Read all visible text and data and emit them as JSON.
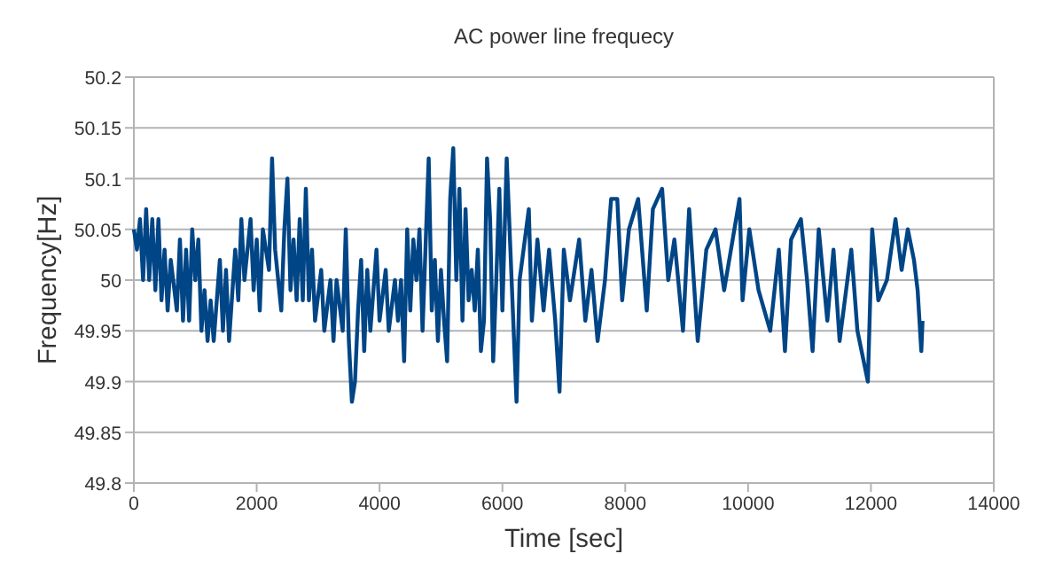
{
  "chart_data": {
    "type": "line",
    "title": "AC power line frequecy",
    "xlabel": "Time [sec]",
    "ylabel": "Frequency[Hz]",
    "xlim": [
      0,
      14000
    ],
    "ylim": [
      49.8,
      50.2
    ],
    "xticks": [
      0,
      2000,
      4000,
      6000,
      8000,
      10000,
      12000,
      14000
    ],
    "yticks": [
      49.8,
      49.85,
      49.9,
      49.95,
      50,
      50.05,
      50.1,
      50.15,
      50.2
    ],
    "grid": "y",
    "marker": "none",
    "line_style": "solid",
    "series": [
      {
        "color": "#004586",
        "x": [
          0,
          50,
          100,
          150,
          200,
          250,
          300,
          350,
          400,
          450,
          500,
          550,
          600,
          700,
          750,
          800,
          850,
          900,
          950,
          1000,
          1050,
          1100,
          1150,
          1200,
          1250,
          1300,
          1400,
          1450,
          1500,
          1550,
          1650,
          1700,
          1750,
          1800,
          1900,
          1950,
          2000,
          2050,
          2100,
          2200,
          2250,
          2300,
          2350,
          2400,
          2450,
          2500,
          2550,
          2600,
          2650,
          2700,
          2750,
          2800,
          2850,
          2900,
          2950,
          3050,
          3100,
          3200,
          3250,
          3300,
          3400,
          3450,
          3500,
          3550,
          3600,
          3650,
          3700,
          3750,
          3800,
          3850,
          3950,
          4000,
          4100,
          4150,
          4250,
          4300,
          4350,
          4400,
          4450,
          4500,
          4550,
          4600,
          4650,
          4700,
          4800,
          4850,
          4900,
          4950,
          5000,
          5050,
          5100,
          5150,
          5200,
          5250,
          5300,
          5350,
          5400,
          5450,
          5500,
          5550,
          5600,
          5650,
          5700,
          5750,
          5800,
          5850,
          5900,
          5950,
          6000,
          6070,
          6230,
          6280,
          6430,
          6480,
          6570,
          6670,
          6760,
          6860,
          6930,
          7000,
          7100,
          7250,
          7350,
          7450,
          7550,
          7670,
          7770,
          7870,
          7950,
          8060,
          8210,
          8350,
          8450,
          8600,
          8700,
          8800,
          8940,
          9040,
          9180,
          9320,
          9470,
          9610,
          9860,
          9910,
          10020,
          10170,
          10360,
          10500,
          10600,
          10700,
          10860,
          10960,
          11050,
          11150,
          11290,
          11390,
          11490,
          11680,
          11780,
          11950,
          12020,
          12120,
          12260,
          12400,
          12500,
          12600,
          12700,
          12760,
          12820,
          12840
        ],
        "values": [
          50.05,
          50.03,
          50.06,
          50.0,
          50.07,
          50.0,
          50.06,
          49.99,
          50.06,
          49.98,
          50.03,
          49.97,
          50.02,
          49.97,
          50.04,
          49.96,
          50.03,
          49.96,
          50.05,
          50.0,
          50.04,
          49.95,
          49.99,
          49.94,
          49.98,
          49.94,
          50.02,
          49.95,
          50.01,
          49.94,
          50.03,
          49.98,
          50.06,
          50.0,
          50.06,
          49.99,
          50.04,
          49.97,
          50.05,
          50.01,
          50.12,
          50.03,
          50.0,
          49.97,
          50.05,
          50.1,
          49.99,
          50.04,
          49.98,
          50.06,
          49.98,
          50.09,
          49.98,
          50.03,
          49.96,
          50.01,
          49.95,
          50.0,
          49.94,
          50.0,
          49.95,
          50.05,
          49.94,
          49.88,
          49.9,
          49.97,
          50.02,
          49.93,
          50.01,
          49.95,
          50.03,
          49.96,
          50.01,
          49.95,
          50.0,
          49.96,
          50.0,
          49.92,
          50.05,
          49.97,
          50.04,
          50.0,
          50.05,
          49.95,
          50.12,
          49.97,
          50.02,
          49.94,
          50.01,
          49.96,
          49.92,
          50.08,
          50.13,
          50.0,
          50.09,
          49.96,
          50.07,
          49.98,
          50.01,
          49.97,
          50.03,
          49.93,
          49.96,
          50.12,
          50.06,
          49.92,
          50.0,
          50.09,
          49.97,
          50.12,
          49.88,
          50.0,
          50.07,
          49.96,
          50.04,
          49.97,
          50.03,
          49.96,
          49.89,
          50.03,
          49.98,
          50.04,
          49.96,
          50.01,
          49.94,
          50.0,
          50.08,
          50.08,
          49.98,
          50.05,
          50.08,
          49.97,
          50.07,
          50.09,
          50.0,
          50.04,
          49.95,
          50.07,
          49.94,
          50.03,
          50.05,
          49.99,
          50.08,
          49.98,
          50.05,
          49.99,
          49.95,
          50.03,
          49.93,
          50.04,
          50.06,
          50.0,
          49.93,
          50.05,
          49.96,
          50.03,
          49.94,
          50.03,
          49.95,
          49.9,
          50.05,
          49.98,
          50.0,
          50.06,
          50.01,
          50.05,
          50.02,
          49.99,
          49.93,
          49.96
        ]
      }
    ]
  }
}
